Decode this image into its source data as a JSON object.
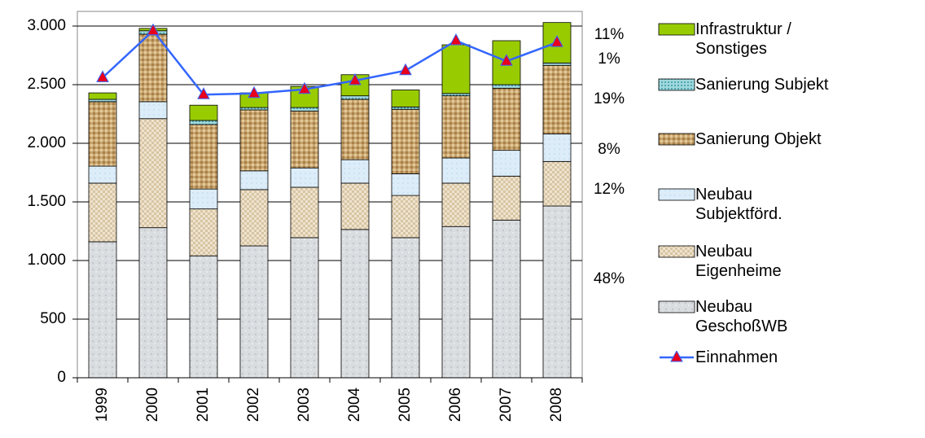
{
  "chart_data": {
    "type": "bar",
    "stacked": true,
    "categories": [
      "1999",
      "2000",
      "2001",
      "2002",
      "2003",
      "2004",
      "2005",
      "2006",
      "2007",
      "2008"
    ],
    "series": [
      {
        "name": "Neubau GeschoßWB",
        "color": "#d9dcdf",
        "values": [
          1160,
          1280,
          1040,
          1125,
          1195,
          1265,
          1195,
          1290,
          1345,
          1465
        ]
      },
      {
        "name": "Neubau Eigenheime",
        "color": "#e3d3b8",
        "values": [
          500,
          930,
          400,
          480,
          430,
          395,
          360,
          370,
          375,
          380
        ]
      },
      {
        "name": "Neubau Subjektförd.",
        "color": "#d6eaf8",
        "values": [
          145,
          145,
          170,
          160,
          165,
          200,
          185,
          215,
          220,
          235
        ]
      },
      {
        "name": "Sanierung Objekt",
        "color": "#c09a63",
        "values": [
          550,
          575,
          550,
          520,
          485,
          515,
          550,
          530,
          530,
          585
        ]
      },
      {
        "name": "Sanierung Subjekt",
        "color": "#7fc9cf",
        "values": [
          20,
          30,
          35,
          20,
          30,
          30,
          20,
          20,
          30,
          20
        ]
      },
      {
        "name": "Infrastruktur / Sonstiges",
        "color": "#99cc00",
        "values": [
          55,
          20,
          130,
          125,
          180,
          180,
          145,
          415,
          375,
          345
        ]
      },
      {
        "name": "Einnahmen",
        "type": "line",
        "color": "#3366ff",
        "marker_color": "#e8001c",
        "values": [
          2560,
          2960,
          2415,
          2425,
          2460,
          2535,
          2620,
          2875,
          2700,
          2860
        ]
      }
    ],
    "ylim": [
      0,
      3125
    ],
    "yticks": [
      0,
      500,
      {
        "value": 1000,
        "label": "1.000"
      },
      {
        "value": 1500,
        "label": "1.500"
      },
      {
        "value": 2000,
        "label": "2.000"
      },
      {
        "value": 2500,
        "label": "2.500"
      },
      {
        "value": 3000,
        "label": "3.000"
      }
    ],
    "grid": true,
    "legend": "right",
    "annotations": [
      "11%",
      "1%",
      "19%",
      "8%",
      "12%",
      "48%"
    ]
  }
}
